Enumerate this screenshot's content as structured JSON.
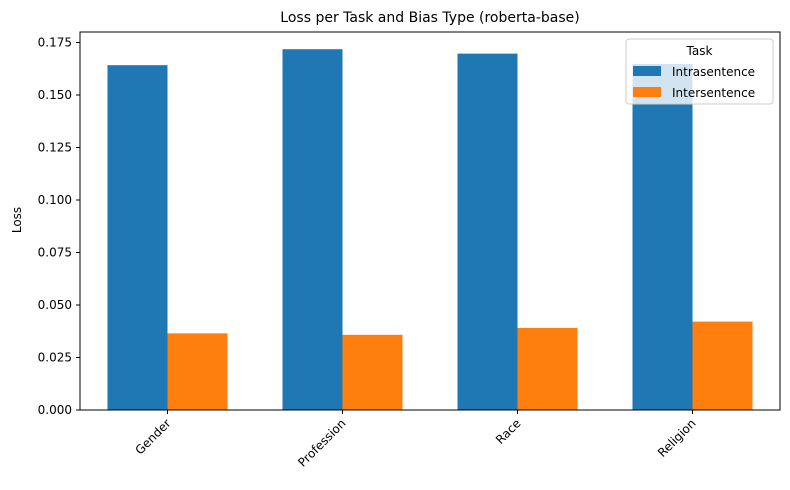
{
  "chart_data": {
    "type": "bar",
    "title": "Loss per Task and Bias Type (roberta-base)",
    "xlabel": "",
    "ylabel": "Loss",
    "categories": [
      "Gender",
      "Profession",
      "Race",
      "Religion"
    ],
    "series": [
      {
        "name": "Intrasentence",
        "color": "#1f77b4",
        "values": [
          0.1642,
          0.1718,
          0.1697,
          0.1648
        ]
      },
      {
        "name": "Intersentence",
        "color": "#ff7f0e",
        "values": [
          0.0365,
          0.0358,
          0.0391,
          0.0421
        ]
      }
    ],
    "ylim": [
      0,
      0.18
    ],
    "yticks": [
      0.0,
      0.025,
      0.05,
      0.075,
      0.1,
      0.125,
      0.15,
      0.175
    ],
    "ytick_labels": [
      "0.000",
      "0.025",
      "0.050",
      "0.075",
      "0.100",
      "0.125",
      "0.150",
      "0.175"
    ],
    "grid": false,
    "legend": {
      "title": "Task",
      "placement": "top-right"
    }
  }
}
